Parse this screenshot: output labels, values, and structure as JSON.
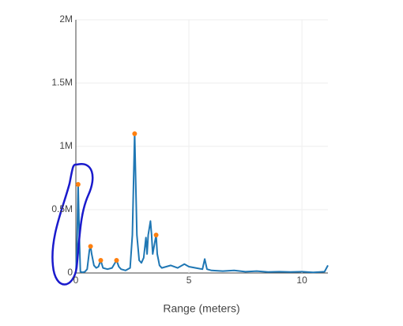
{
  "chart_data": {
    "type": "line",
    "x_label": "Range (meters)",
    "xlim": [
      0,
      11.15
    ],
    "xticks": [
      0,
      5,
      10
    ],
    "ylim": [
      0,
      2000000
    ],
    "yticks": [
      0,
      {
        "value": 500000,
        "label": "0.5M"
      },
      {
        "value": 1000000,
        "label": "1M"
      },
      {
        "value": 1500000,
        "label": "1.5M"
      },
      {
        "value": 2000000,
        "label": "2M"
      }
    ],
    "grid": true,
    "series": [
      {
        "type": "line",
        "color": "#1f77b4",
        "x": [
          0,
          0.05,
          0.1,
          0.15,
          0.2,
          0.3,
          0.4,
          0.5,
          0.6,
          0.65,
          0.7,
          0.8,
          0.9,
          1.0,
          1.1,
          1.2,
          1.4,
          1.6,
          1.8,
          1.9,
          2.0,
          2.2,
          2.4,
          2.5,
          2.6,
          2.7,
          2.8,
          2.9,
          3.0,
          3.1,
          3.15,
          3.2,
          3.3,
          3.35,
          3.4,
          3.5,
          3.55,
          3.6,
          3.7,
          3.8,
          4.0,
          4.2,
          4.5,
          4.8,
          5.0,
          5.3,
          5.6,
          5.7,
          5.8,
          6.0,
          6.5,
          7.0,
          7.5,
          8.0,
          8.5,
          9.0,
          9.5,
          10.0,
          10.5,
          11.0,
          11.15
        ],
        "values": [
          0,
          200000,
          700000,
          300000,
          10000,
          5000,
          10000,
          30000,
          180000,
          210000,
          150000,
          60000,
          40000,
          50000,
          100000,
          40000,
          30000,
          40000,
          100000,
          50000,
          30000,
          20000,
          40000,
          300000,
          1100000,
          300000,
          100000,
          80000,
          120000,
          280000,
          150000,
          300000,
          410000,
          300000,
          150000,
          250000,
          300000,
          150000,
          60000,
          40000,
          50000,
          60000,
          40000,
          70000,
          50000,
          40000,
          30000,
          110000,
          30000,
          20000,
          15000,
          20000,
          10000,
          15000,
          8000,
          10000,
          8000,
          10000,
          5000,
          10000,
          60000
        ]
      },
      {
        "type": "scatter",
        "color": "#ff7f0e",
        "x": [
          0.1,
          0.65,
          1.1,
          1.8,
          2.6,
          3.55
        ],
        "values": [
          700000,
          210000,
          100000,
          100000,
          1100000,
          300000
        ]
      }
    ]
  }
}
